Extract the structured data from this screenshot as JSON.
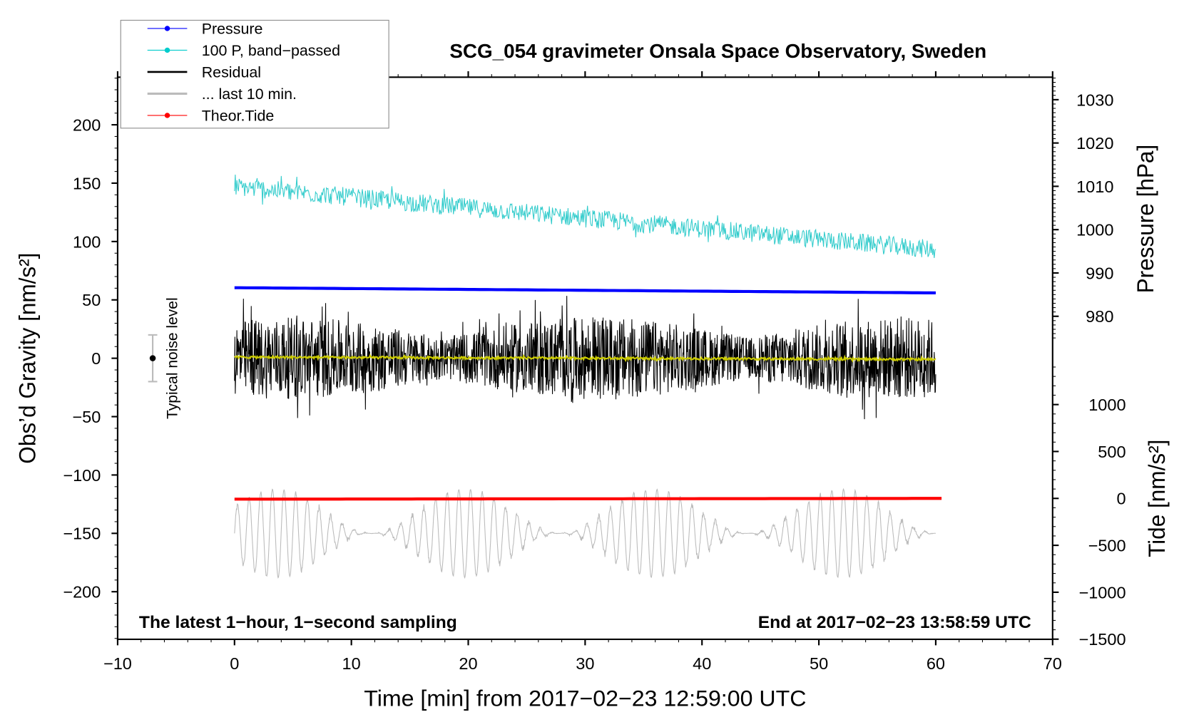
{
  "chart_data": {
    "type": "line",
    "title": "SCG_054 gravimeter Onsala Space Observatory, Sweden",
    "xlabel": "Time [min] from 2017−02−23 12:59:00 UTC",
    "ylabel_left": "Obs’d Gravity [nm/s²]",
    "ylabel_right_pressure": "Pressure [hPa]",
    "ylabel_right_tide": "Tide [nm/s²]",
    "xlim": [
      -10,
      70
    ],
    "ylim_left": [
      -240,
      240
    ],
    "x_ticks": [
      "−10",
      "0",
      "10",
      "20",
      "30",
      "40",
      "50",
      "60",
      "70"
    ],
    "y_ticks_left": [
      "200",
      "150",
      "100",
      "50",
      "0",
      "−50",
      "−100",
      "−150",
      "−200"
    ],
    "y_ticks_pressure": [
      "1030",
      "1020",
      "1010",
      "1000",
      "990",
      "980"
    ],
    "y_ticks_tide": [
      "1000",
      "500",
      "0",
      "−500",
      "−1000",
      "−1500"
    ],
    "annotation_left": "The latest 1−hour, 1−second sampling",
    "annotation_right": "End at 2017−02−23 13:58:59 UTC",
    "noise_label": "Typical noise level",
    "noise_bar": {
      "x": -7,
      "center": 0,
      "halfwidth": 20
    },
    "legend": {
      "placement": "top-left",
      "entries": [
        {
          "label": "Pressure",
          "color": "#0000ff",
          "marker": true
        },
        {
          "label": "100 P, band−passed",
          "color": "#00cccc",
          "marker": true
        },
        {
          "label": "Residual",
          "color": "#000000",
          "marker": false
        },
        {
          "label": "... last 10 min.",
          "color": "#bbbbbb",
          "marker": false
        },
        {
          "label": "Theor.Tide",
          "color": "#ff0000",
          "marker": true
        }
      ]
    },
    "series": [
      {
        "name": "Pressure",
        "axis": "pressure_hPa",
        "color": "#0000ff",
        "x_range": [
          0,
          60
        ],
        "start": 986.6,
        "end": 985.4,
        "noise": 0
      },
      {
        "name": "100 P, band-passed",
        "axis": "left",
        "color": "#33cccc",
        "x_range": [
          0,
          60
        ],
        "start": 147,
        "end": 93,
        "noise": 8
      },
      {
        "name": "Residual",
        "axis": "left",
        "color": "#000000",
        "x_range": [
          0,
          60
        ],
        "start": 0,
        "end": 0,
        "noise": 35
      },
      {
        "name": "Residual smoothed",
        "axis": "left",
        "color": "#cccc00",
        "x_range": [
          0,
          60
        ],
        "start": 1,
        "end": -1,
        "noise": 1
      },
      {
        "name": "... last 10 min.",
        "axis": "left",
        "color": "#bbbbbb",
        "x_range": [
          0,
          60
        ],
        "start": -150,
        "end": -150,
        "noise": 38
      },
      {
        "name": "Theor.Tide",
        "axis": "tide",
        "color": "#ff0000",
        "x_range": [
          0,
          60.5
        ],
        "start": -8,
        "end": 0,
        "noise": 0
      }
    ]
  }
}
